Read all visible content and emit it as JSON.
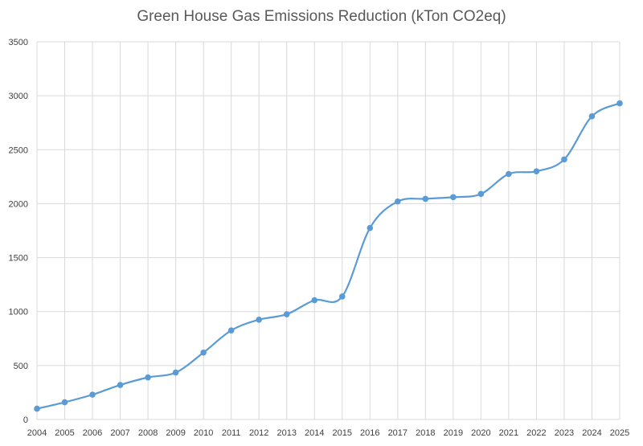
{
  "chart_data": {
    "type": "line",
    "title": "Green House Gas Emissions Reduction (kTon CO2eq)",
    "xlabel": "",
    "ylabel": "",
    "x": [
      "2004",
      "2005",
      "2006",
      "2007",
      "2008",
      "2009",
      "2010",
      "2011",
      "2012",
      "2013",
      "2014",
      "2015",
      "2016",
      "2017",
      "2018",
      "2019",
      "2020",
      "2021",
      "2022",
      "2023",
      "2024",
      "2025"
    ],
    "series": [
      {
        "values": [
          100,
          160,
          230,
          320,
          390,
          435,
          620,
          825,
          925,
          975,
          1105,
          1140,
          1775,
          2020,
          2045,
          2060,
          2090,
          2275,
          2300,
          2410,
          2810,
          2930
        ],
        "color": "#5B9BD5"
      }
    ],
    "ylim": [
      0,
      3500
    ],
    "yticks": [
      0,
      500,
      1000,
      1500,
      2000,
      2500,
      3000,
      3500
    ],
    "grid": true,
    "smooth": true,
    "markers": true,
    "legend": "none"
  },
  "colors": {
    "line": "#5B9BD5",
    "grid": "#D9D9D9",
    "title": "#595959",
    "tick_text": "#404040"
  }
}
